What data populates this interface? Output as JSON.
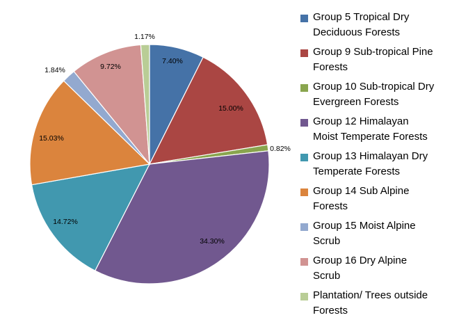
{
  "chart_data": {
    "type": "pie",
    "title": "",
    "legend_position": "right",
    "start_angle_deg": 0,
    "direction": "clockwise",
    "slices": [
      {
        "name": "Group 5 Tropical Dry Deciduous Forests",
        "value": 7.4,
        "label": "7.40%",
        "color": "#4572A7"
      },
      {
        "name": "Group 9 Sub-tropical Pine Forests",
        "value": 15.0,
        "label": "15.00%",
        "color": "#AA4643"
      },
      {
        "name": "Group 10 Sub-tropical Dry Evergreen Forests",
        "value": 0.82,
        "label": "0.82%",
        "color": "#89A54E"
      },
      {
        "name": "Group 12 Himalayan Moist Temperate Forests",
        "value": 34.3,
        "label": "34.30%",
        "color": "#71588F"
      },
      {
        "name": "Group 13 Himalayan Dry Temperate Forests",
        "value": 14.72,
        "label": "14.72%",
        "color": "#4198AF"
      },
      {
        "name": "Group 14 Sub Alpine Forests",
        "value": 15.03,
        "label": "15.03%",
        "color": "#DB843D"
      },
      {
        "name": "Group 15 Moist Alpine Scrub",
        "value": 1.84,
        "label": "1.84%",
        "color": "#93A9CF"
      },
      {
        "name": "Group 16 Dry Alpine Scrub",
        "value": 9.72,
        "label": "9.72%",
        "color": "#D19392"
      },
      {
        "name": "Plantation/ Trees outside Forests",
        "value": 1.17,
        "label": "1.17%",
        "color": "#B9CD96"
      }
    ],
    "legend_lines": [
      "Group 5 Tropical Dry\nDeciduous Forests",
      "Group 9 Sub-tropical Pine\nForests",
      "Group 10 Sub-tropical Dry\nEvergreen Forests",
      "Group 12 Himalayan\nMoist Temperate Forests",
      "Group 13 Himalayan Dry\nTemperate Forests",
      "Group 14 Sub Alpine\nForests",
      "Group 15 Moist Alpine\nScrub",
      "Group 16 Dry Alpine\nScrub",
      "Plantation/ Trees outside\nForests"
    ]
  }
}
